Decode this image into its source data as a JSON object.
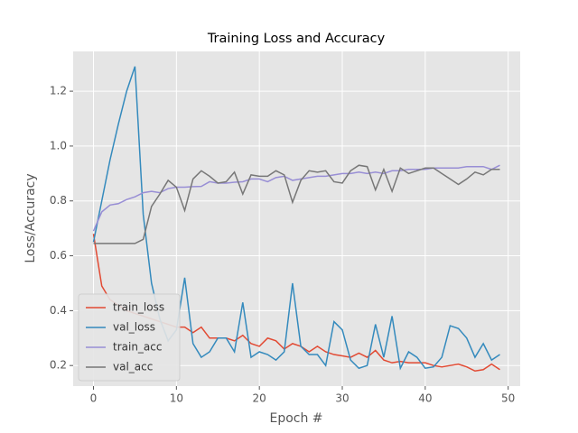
{
  "chart_data": {
    "type": "line",
    "title": "Training Loss and Accuracy",
    "x_label": "Epoch #",
    "y_label": "Loss/Accuracy",
    "x": [
      0,
      1,
      2,
      3,
      4,
      5,
      6,
      7,
      8,
      9,
      10,
      11,
      12,
      13,
      14,
      15,
      16,
      17,
      18,
      19,
      20,
      21,
      22,
      23,
      24,
      25,
      26,
      27,
      28,
      29,
      30,
      31,
      32,
      33,
      34,
      35,
      36,
      37,
      38,
      39,
      40,
      41,
      42,
      43,
      44,
      45,
      46,
      47,
      48,
      49
    ],
    "series": [
      {
        "name": "train_loss",
        "color": "#E24A33",
        "values": [
          0.68,
          0.49,
          0.44,
          0.42,
          0.4,
          0.39,
          0.38,
          0.37,
          0.36,
          0.35,
          0.34,
          0.34,
          0.32,
          0.34,
          0.3,
          0.3,
          0.3,
          0.29,
          0.31,
          0.28,
          0.27,
          0.3,
          0.29,
          0.26,
          0.28,
          0.27,
          0.25,
          0.27,
          0.25,
          0.24,
          0.235,
          0.23,
          0.245,
          0.23,
          0.255,
          0.22,
          0.21,
          0.215,
          0.21,
          0.21,
          0.21,
          0.2,
          0.195,
          0.2,
          0.205,
          0.195,
          0.18,
          0.185,
          0.205,
          0.185
        ]
      },
      {
        "name": "val_loss",
        "color": "#348ABD",
        "values": [
          0.65,
          0.8,
          0.95,
          1.08,
          1.2,
          1.29,
          0.75,
          0.5,
          0.37,
          0.29,
          0.33,
          0.52,
          0.28,
          0.23,
          0.25,
          0.3,
          0.3,
          0.25,
          0.43,
          0.23,
          0.25,
          0.24,
          0.22,
          0.25,
          0.5,
          0.27,
          0.24,
          0.24,
          0.2,
          0.36,
          0.33,
          0.22,
          0.19,
          0.2,
          0.35,
          0.23,
          0.38,
          0.19,
          0.25,
          0.23,
          0.19,
          0.195,
          0.23,
          0.345,
          0.335,
          0.3,
          0.23,
          0.28,
          0.22,
          0.24
        ]
      },
      {
        "name": "train_acc",
        "color": "#988ED5",
        "values": [
          0.69,
          0.76,
          0.785,
          0.79,
          0.805,
          0.815,
          0.83,
          0.835,
          0.83,
          0.845,
          0.85,
          0.85,
          0.852,
          0.853,
          0.87,
          0.865,
          0.865,
          0.868,
          0.87,
          0.88,
          0.88,
          0.87,
          0.885,
          0.89,
          0.875,
          0.88,
          0.885,
          0.89,
          0.89,
          0.895,
          0.9,
          0.9,
          0.905,
          0.9,
          0.905,
          0.9,
          0.91,
          0.91,
          0.915,
          0.915,
          0.915,
          0.92,
          0.92,
          0.92,
          0.92,
          0.925,
          0.925,
          0.925,
          0.915,
          0.93
        ]
      },
      {
        "name": "val_acc",
        "color": "#777777",
        "values": [
          0.645,
          0.645,
          0.645,
          0.645,
          0.645,
          0.645,
          0.66,
          0.78,
          0.825,
          0.875,
          0.85,
          0.765,
          0.88,
          0.91,
          0.89,
          0.865,
          0.87,
          0.905,
          0.825,
          0.895,
          0.89,
          0.89,
          0.91,
          0.895,
          0.795,
          0.875,
          0.91,
          0.905,
          0.91,
          0.87,
          0.865,
          0.91,
          0.93,
          0.925,
          0.84,
          0.915,
          0.835,
          0.92,
          0.9,
          0.91,
          0.92,
          0.92,
          0.9,
          0.88,
          0.86,
          0.88,
          0.905,
          0.895,
          0.915,
          0.915
        ]
      }
    ],
    "xlim": [
      -2.45,
      51.45
    ],
    "xticks": [
      0,
      10,
      20,
      30,
      40,
      50
    ],
    "ylim": [
      0.125,
      1.345
    ],
    "yticks": [
      0.2,
      0.4,
      0.6,
      0.8,
      1.0,
      1.2
    ],
    "grid": true,
    "legend": "lower-left"
  }
}
